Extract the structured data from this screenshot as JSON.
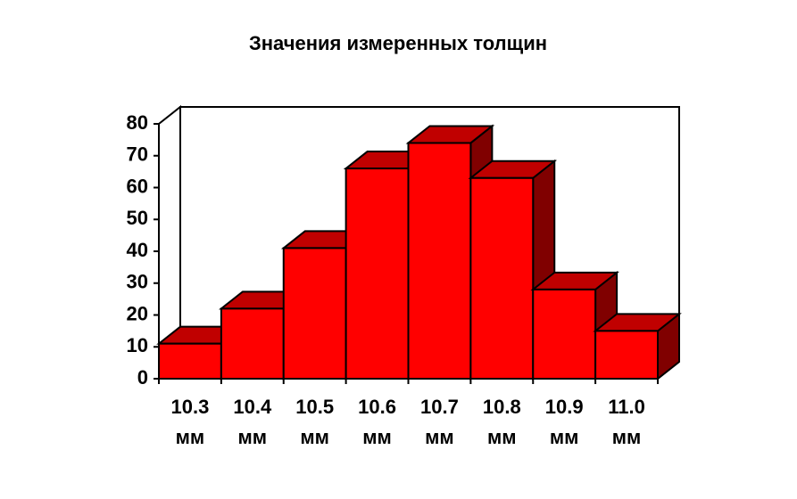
{
  "chart_data": {
    "type": "bar3d",
    "title": "Значения измеренных толщин",
    "categories": [
      "10.3 мм",
      "10.4 мм",
      "10.5 мм",
      "10.6 мм",
      "10.7 мм",
      "10.8 мм",
      "10.9 мм",
      "11.0 мм"
    ],
    "values": [
      11,
      22,
      41,
      66,
      74,
      63,
      28,
      15
    ],
    "color": "#ff0000",
    "top_color": "#c00000",
    "side_color": "#800000",
    "ylim": [
      0,
      80
    ],
    "yticks": [
      0,
      10,
      20,
      30,
      40,
      50,
      60,
      70,
      80
    ]
  }
}
